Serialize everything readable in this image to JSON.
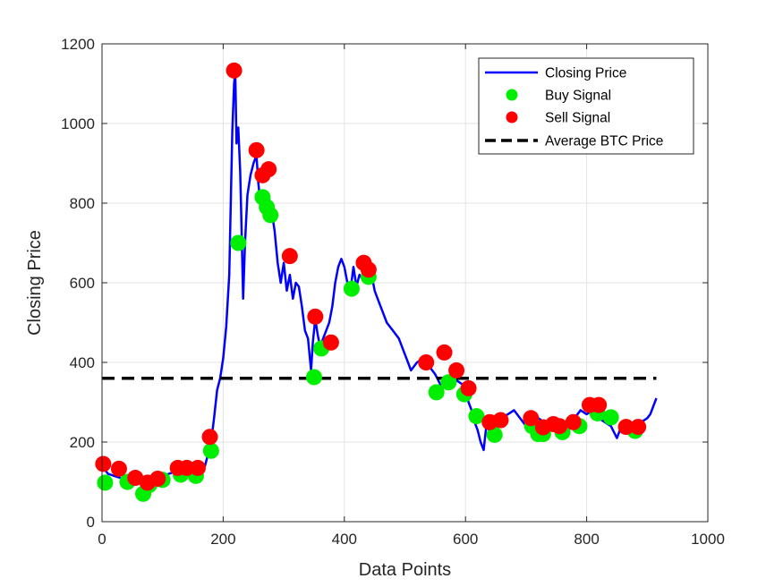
{
  "chart_data": {
    "type": "line",
    "xlabel": "Data Points",
    "ylabel": "Closing Price",
    "xlim": [
      0,
      1000
    ],
    "ylim": [
      0,
      1200
    ],
    "xticks": [
      0,
      200,
      400,
      600,
      800,
      1000
    ],
    "yticks": [
      0,
      200,
      400,
      600,
      800,
      1000,
      1200
    ],
    "grid": true,
    "legend_position": "top-right",
    "legend": [
      "Closing Price",
      "Buy Signal",
      "Sell Signal",
      "Average BTC Price"
    ],
    "colors": {
      "closing": "#0000ff",
      "buy": "#00ee00",
      "sell": "#ff0000",
      "average": "#000000",
      "grid": "#e3e3e3"
    },
    "series": [
      {
        "name": "Closing Price",
        "kind": "line",
        "x": [
          0,
          10,
          20,
          30,
          40,
          50,
          60,
          70,
          80,
          90,
          100,
          110,
          120,
          130,
          140,
          150,
          160,
          170,
          180,
          185,
          190,
          195,
          200,
          205,
          210,
          212,
          215,
          218,
          220,
          222,
          225,
          228,
          230,
          233,
          236,
          240,
          245,
          250,
          255,
          258,
          262,
          265,
          268,
          272,
          276,
          280,
          285,
          290,
          295,
          300,
          305,
          310,
          315,
          320,
          325,
          330,
          335,
          340,
          345,
          348,
          352,
          356,
          360,
          365,
          370,
          375,
          380,
          385,
          390,
          395,
          400,
          405,
          410,
          415,
          420,
          425,
          430,
          435,
          440,
          445,
          450,
          455,
          460,
          465,
          470,
          480,
          490,
          500,
          510,
          520,
          530,
          540,
          550,
          560,
          570,
          580,
          590,
          600,
          605,
          610,
          615,
          620,
          625,
          630,
          635,
          640,
          645,
          650,
          660,
          670,
          680,
          690,
          700,
          710,
          720,
          730,
          740,
          750,
          760,
          770,
          780,
          790,
          800,
          810,
          820,
          830,
          840,
          850,
          855,
          860,
          870,
          880,
          890,
          900,
          905,
          910,
          915
        ],
        "y": [
          140,
          120,
          115,
          110,
          100,
          100,
          100,
          90,
          95,
          105,
          110,
          120,
          125,
          130,
          130,
          125,
          125,
          140,
          200,
          260,
          330,
          360,
          410,
          490,
          620,
          760,
          980,
          1100,
          1130,
          950,
          990,
          880,
          760,
          560,
          700,
          820,
          870,
          900,
          920,
          850,
          790,
          820,
          820,
          760,
          810,
          780,
          730,
          650,
          600,
          650,
          580,
          620,
          560,
          600,
          590,
          540,
          480,
          460,
          380,
          450,
          510,
          470,
          440,
          460,
          480,
          500,
          540,
          600,
          640,
          660,
          640,
          600,
          580,
          640,
          590,
          620,
          610,
          640,
          610,
          620,
          580,
          560,
          540,
          520,
          500,
          480,
          460,
          420,
          380,
          400,
          410,
          390,
          370,
          340,
          350,
          360,
          350,
          340,
          300,
          280,
          250,
          230,
          200,
          180,
          250,
          220,
          240,
          250,
          260,
          270,
          280,
          260,
          240,
          230,
          260,
          250,
          240,
          250,
          240,
          250,
          260,
          280,
          270,
          280,
          260,
          250,
          240,
          210,
          230,
          240,
          250,
          240,
          250,
          260,
          270,
          290,
          310
        ]
      },
      {
        "name": "Buy Signal",
        "kind": "marker",
        "x": [
          5,
          42,
          68,
          78,
          100,
          130,
          155,
          180,
          225,
          265,
          272,
          278,
          350,
          362,
          412,
          440,
          552,
          572,
          598,
          618,
          648,
          710,
          720,
          728,
          760,
          788,
          818,
          840,
          880
        ],
        "y": [
          98,
          100,
          70,
          92,
          105,
          118,
          115,
          178,
          700,
          815,
          790,
          770,
          363,
          435,
          585,
          615,
          325,
          350,
          320,
          265,
          218,
          240,
          220,
          220,
          225,
          240,
          272,
          262,
          228
        ]
      },
      {
        "name": "Sell Signal",
        "kind": "marker",
        "x": [
          2,
          28,
          55,
          75,
          92,
          125,
          140,
          158,
          178,
          218,
          255,
          265,
          275,
          310,
          352,
          378,
          432,
          440,
          535,
          565,
          585,
          605,
          640,
          658,
          708,
          728,
          745,
          755,
          778,
          805,
          820,
          865,
          885
        ],
        "y": [
          145,
          133,
          110,
          98,
          108,
          135,
          135,
          135,
          213,
          1133,
          933,
          870,
          885,
          667,
          515,
          450,
          650,
          633,
          400,
          425,
          380,
          335,
          250,
          255,
          260,
          237,
          245,
          240,
          250,
          293,
          293,
          238,
          238
        ]
      },
      {
        "name": "Average BTC Price",
        "kind": "hline",
        "y": 360
      }
    ]
  }
}
